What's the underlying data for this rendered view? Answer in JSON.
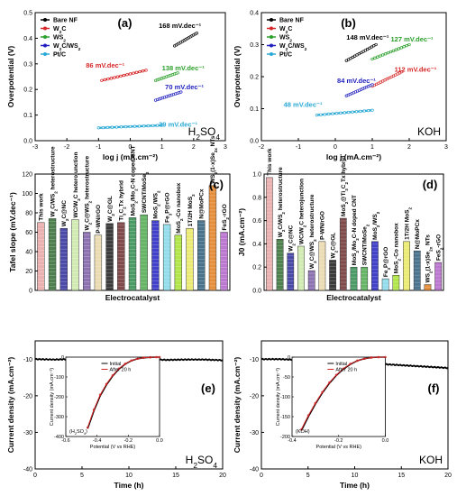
{
  "chart_data": [
    {
      "id": "a",
      "type": "line",
      "panel_label": "(a)",
      "electrolyte_label": "H2SO4",
      "xlabel": "log j (mA.cm⁻²)",
      "ylabel": "Overpotential (V)",
      "xlim": [
        -3,
        3
      ],
      "ylim": [
        0,
        0.5
      ],
      "xticks": [
        "-3",
        "-2",
        "-1",
        "0",
        "1",
        "2",
        "3"
      ],
      "yticks": [
        "0.0",
        "0.1",
        "0.2",
        "0.3",
        "0.4",
        "0.5"
      ],
      "series": [
        {
          "name": "Bare NF",
          "color": "#000000",
          "x": [
            1.4,
            2.1
          ],
          "y": [
            0.37,
            0.42
          ]
        },
        {
          "name": "W2C",
          "color": "#d62728",
          "x": [
            -0.9,
            0.5
          ],
          "y": [
            0.235,
            0.275
          ]
        },
        {
          "name": "WS2",
          "color": "#2ca02c",
          "x": [
            0.8,
            1.5
          ],
          "y": [
            0.235,
            0.265
          ]
        },
        {
          "name": "W2C/WS2",
          "color": "#1f1fbf",
          "x": [
            0.8,
            1.6
          ],
          "y": [
            0.158,
            0.19
          ]
        },
        {
          "name": "Pt/C",
          "color": "#2aa9d6",
          "x": [
            -1.0,
            1.0
          ],
          "y": [
            0.05,
            0.06
          ]
        }
      ],
      "annotations": [
        {
          "text": "168 mV.dec⁻¹",
          "color": "#000000",
          "x": 0.9,
          "y": 0.44
        },
        {
          "text": "86 mV.dec⁻¹",
          "color": "#d62728",
          "x": -1.4,
          "y": 0.285
        },
        {
          "text": "138 mV.dec⁻¹",
          "color": "#2ca02c",
          "x": 1.0,
          "y": 0.275
        },
        {
          "text": "70 mV.dec⁻¹",
          "color": "#1f1fbf",
          "x": 1.1,
          "y": 0.2
        },
        {
          "text": "39 mV.dec⁻¹",
          "color": "#2aa9d6",
          "x": 0.9,
          "y": 0.055
        }
      ]
    },
    {
      "id": "b",
      "type": "line",
      "panel_label": "(b)",
      "electrolyte_label": "KOH",
      "xlabel": "log j (mA.cm⁻²)",
      "ylabel": "Overpotential (V)",
      "xlim": [
        -2,
        3
      ],
      "ylim": [
        0,
        0.4
      ],
      "xticks": [
        "-2",
        "-1",
        "0",
        "1",
        "2",
        "3"
      ],
      "yticks": [
        "0.0",
        "0.1",
        "0.2",
        "0.3",
        "0.4"
      ],
      "series": [
        {
          "name": "Bare NF",
          "color": "#000000",
          "x": [
            0.3,
            1.1
          ],
          "y": [
            0.25,
            0.3
          ]
        },
        {
          "name": "W2C",
          "color": "#d62728",
          "x": [
            1.0,
            1.8
          ],
          "y": [
            0.17,
            0.215
          ]
        },
        {
          "name": "WS2",
          "color": "#2ca02c",
          "x": [
            1.0,
            2.0
          ],
          "y": [
            0.255,
            0.3
          ]
        },
        {
          "name": "W2C/WS2",
          "color": "#1f1fbf",
          "x": [
            0.3,
            1.0
          ],
          "y": [
            0.14,
            0.175
          ]
        },
        {
          "name": "Pt/C",
          "color": "#2aa9d6",
          "x": [
            -0.5,
            1.0
          ],
          "y": [
            0.08,
            0.095
          ]
        }
      ],
      "annotations": [
        {
          "text": "148 mV.dec⁻¹",
          "color": "#000000",
          "x": 0.3,
          "y": 0.315
        },
        {
          "text": "127 mV.dec⁻¹",
          "color": "#2ca02c",
          "x": 1.5,
          "y": 0.31
        },
        {
          "text": "112 mV.dec⁻¹",
          "color": "#d62728",
          "x": 1.6,
          "y": 0.215
        },
        {
          "text": "84 mV.dec⁻¹",
          "color": "#1f1fbf",
          "x": 0.05,
          "y": 0.18
        },
        {
          "text": "48 mV.dec⁻¹",
          "color": "#2aa9d6",
          "x": -1.4,
          "y": 0.105
        }
      ]
    },
    {
      "id": "c",
      "type": "bar",
      "panel_label": "(c)",
      "xlabel": "Electrocatalyst",
      "ylabel": "Tafel slope (mV.dec⁻¹)",
      "ylim": [
        0,
        120
      ],
      "yticks": [
        "0",
        "20",
        "40",
        "60",
        "80",
        "100",
        "120"
      ],
      "categories": [
        "This work",
        "W2C/WS2 heterostructure",
        "W2C@NC",
        "WC/W2C heterojunction",
        "W2C@WS2 heterostructure",
        "P-WN/rGO",
        "W2C@GL",
        "Ti3C2Tx hybrid",
        "MoS2/Mo2C-N doped CNT",
        "SWCNT/MoSe2",
        "MoS2/WS2",
        "Fe3P@rGO",
        "MoS2-Co nanobox",
        "1T/2H MoS2",
        "N@MoPCx",
        "WS2(1-x)Se2x NTs",
        "FeS2-rGO"
      ],
      "values": [
        70,
        74,
        64,
        73,
        60,
        57,
        69,
        70,
        75,
        78,
        72,
        68,
        57,
        64,
        72,
        108,
        60
      ],
      "colors": [
        "#e8a3a3",
        "#2f6b2f",
        "#2a2a9a",
        "#c9e8a6",
        "#7a5aa6",
        "#e8d6a6",
        "#1a1a1a",
        "#6a2a2a",
        "#2a8a4a",
        "#4aa84a",
        "#2020c0",
        "#7fd6e8",
        "#a3e02a",
        "#e8e85a",
        "#2a5a7a",
        "#e07a1a",
        "#b060c8"
      ]
    },
    {
      "id": "d",
      "type": "bar",
      "panel_label": "(d)",
      "xlabel": "Electrocatalyst",
      "ylabel": "J0 (mA.cm⁻²)",
      "ylim": [
        0,
        1.0
      ],
      "yticks": [
        "0.0",
        "0.2",
        "0.4",
        "0.6",
        "0.8",
        "1.0"
      ],
      "categories": [
        "This work",
        "W2C/WS2 heterostructure",
        "W2C@NC",
        "WC/W2C heterojunction",
        "W2C@WS2 heterostructure",
        "P-WN/rGO",
        "W2C@GL",
        "MoS2@Ti3C2Tx hybrid",
        "MoS2/Mo2C-N doped CNT",
        "SWCNT/MoSe2",
        "MoS2/WS2",
        "Fe3P@rGO",
        "MoS2-Co nanobox",
        "1T/2H MoS2",
        "N@MoPCx",
        "WS2(1-x)Se2x NTs",
        "FeS2-rGO"
      ],
      "values": [
        0.97,
        0.44,
        0.32,
        0.38,
        0.17,
        0.42,
        0.26,
        0.62,
        0.2,
        0.2,
        0.42,
        0.1,
        0.13,
        0.42,
        0.34,
        0.05,
        0.24
      ],
      "colors": [
        "#e8a3a3",
        "#2f6b2f",
        "#2a2a9a",
        "#c9e8a6",
        "#7a5aa6",
        "#e8d6a6",
        "#1a1a1a",
        "#6a2a2a",
        "#2a8a4a",
        "#4aa84a",
        "#2020c0",
        "#7fd6e8",
        "#a3e02a",
        "#e8e85a",
        "#2a5a7a",
        "#e07a1a",
        "#b060c8"
      ]
    },
    {
      "id": "e",
      "type": "line",
      "panel_label": "(e)",
      "electrolyte_label": "H2SO4",
      "xlabel": "Time (h)",
      "ylabel": "Current density (mA.cm⁻²)",
      "xlim": [
        0,
        20
      ],
      "ylim": [
        -40,
        -5
      ],
      "xticks": [
        "0",
        "5",
        "10",
        "15",
        "20"
      ],
      "yticks": [
        "-10",
        "-20",
        "-30",
        "-40"
      ],
      "series": [
        {
          "name": "stability",
          "color": "#000000",
          "x": [
            0,
            2,
            4,
            6,
            8,
            10,
            12,
            14,
            16,
            18,
            20
          ],
          "y": [
            -10,
            -10.1,
            -10,
            -10.2,
            -10,
            -10.1,
            -10,
            -10.2,
            -10.1,
            -10.1,
            -10.3
          ]
        }
      ],
      "inset": {
        "label": "(H2SO4)",
        "xlabel": "Potential (V vs RHE)",
        "ylabel": "Current density (mA.cm⁻²)",
        "xlim": [
          -0.6,
          0.0
        ],
        "ylim": [
          -400,
          0
        ],
        "xticks": [
          "-0.6",
          "-0.4",
          "-0.2",
          "0.0"
        ],
        "yticks": [
          "0",
          "-100",
          "-200",
          "-300",
          "-400"
        ],
        "series": [
          {
            "name": "Initial",
            "color": "#000000",
            "x": [
              -0.46,
              -0.42,
              -0.38,
              -0.34,
              -0.3,
              -0.26,
              -0.22,
              -0.18,
              -0.14,
              -0.1,
              -0.06,
              -0.02,
              0.0
            ],
            "y": [
              -360,
              -270,
              -195,
              -140,
              -95,
              -60,
              -35,
              -18,
              -8,
              -3,
              -1,
              0,
              0
            ]
          },
          {
            "name": "After 20 h",
            "color": "#d62728",
            "x": [
              -0.46,
              -0.42,
              -0.38,
              -0.34,
              -0.3,
              -0.26,
              -0.22,
              -0.18,
              -0.14,
              -0.1,
              -0.06,
              -0.02,
              0.0
            ],
            "y": [
              -355,
              -265,
              -190,
              -136,
              -92,
              -58,
              -34,
              -17,
              -8,
              -3,
              -1,
              0,
              0
            ]
          }
        ]
      }
    },
    {
      "id": "f",
      "type": "line",
      "panel_label": "(f)",
      "electrolyte_label": "KOH",
      "xlabel": "Time (h)",
      "ylabel": "Current density (mA.cm⁻²)",
      "xlim": [
        0,
        20
      ],
      "ylim": [
        -40,
        -5
      ],
      "xticks": [
        "0",
        "5",
        "10",
        "15",
        "20"
      ],
      "yticks": [
        "-10",
        "-20",
        "-30",
        "-40"
      ],
      "series": [
        {
          "name": "stability",
          "color": "#000000",
          "x": [
            0,
            2,
            4,
            6,
            8,
            10,
            12,
            14,
            16,
            18,
            20
          ],
          "y": [
            -10,
            -10,
            -10.2,
            -10.4,
            -10.6,
            -10.9,
            -11.2,
            -11.5,
            -11.8,
            -12.1,
            -12.4
          ]
        }
      ],
      "inset": {
        "label": "(KOH)",
        "xlabel": "Potential (V vs RHE)",
        "ylabel": "Current density (mA.cm⁻²)",
        "xlim": [
          -0.4,
          0.0
        ],
        "ylim": [
          -200,
          0
        ],
        "xticks": [
          "-0.4",
          "-0.2",
          "0.0"
        ],
        "yticks": [
          "0",
          "-50",
          "-100",
          "-150",
          "-200"
        ],
        "series": [
          {
            "name": "Initial",
            "color": "#000000",
            "x": [
              -0.36,
              -0.33,
              -0.3,
              -0.27,
              -0.24,
              -0.21,
              -0.18,
              -0.15,
              -0.12,
              -0.09,
              -0.06,
              -0.03,
              0.0
            ],
            "y": [
              -185,
              -150,
              -118,
              -90,
              -66,
              -46,
              -30,
              -18,
              -9,
              -4,
              -1,
              0,
              0
            ]
          },
          {
            "name": "After 20 h",
            "color": "#d62728",
            "x": [
              -0.36,
              -0.33,
              -0.3,
              -0.27,
              -0.24,
              -0.21,
              -0.18,
              -0.15,
              -0.12,
              -0.09,
              -0.06,
              -0.03,
              0.0
            ],
            "y": [
              -182,
              -147,
              -116,
              -88,
              -64,
              -45,
              -29,
              -17,
              -9,
              -4,
              -1,
              0,
              0
            ]
          }
        ]
      }
    }
  ]
}
